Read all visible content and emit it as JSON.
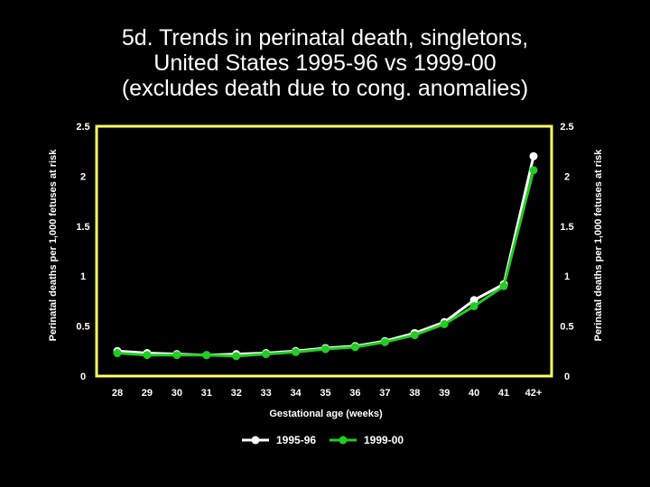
{
  "title_lines": [
    "5d. Trends in perinatal death, singletons,",
    "United States 1995-96 vs 1999-00",
    "(excludes death due to cong. anomalies)"
  ],
  "colors": {
    "background": "#000000",
    "frame": "#ffff66",
    "series1": "#ffffff",
    "series2": "#22cc22",
    "text": "#ffffff"
  },
  "chart_data": {
    "type": "line",
    "title": "5d. Trends in perinatal death, singletons, United States 1995-96 vs 1999-00 (excludes death due to cong. anomalies)",
    "xlabel": "Gestational age (weeks)",
    "ylabel": "Perinatal deaths per 1,000 fetuses at risk",
    "ylabel_right": "Perinatal deaths per 1,000 fetuses at risk",
    "categories": [
      "28",
      "29",
      "30",
      "31",
      "32",
      "33",
      "34",
      "35",
      "36",
      "37",
      "38",
      "39",
      "40",
      "41",
      "42+"
    ],
    "yticks": [
      "0",
      "0.5",
      "1",
      "1.5",
      "2",
      "2.5"
    ],
    "ylim": [
      0,
      2.5
    ],
    "grid": false,
    "legend_position": "bottom",
    "series": [
      {
        "name": "1995-96",
        "color": "#ffffff",
        "values": [
          0.25,
          0.23,
          0.22,
          0.21,
          0.22,
          0.23,
          0.25,
          0.28,
          0.3,
          0.35,
          0.43,
          0.54,
          0.76,
          0.92,
          2.2
        ]
      },
      {
        "name": "1999-00",
        "color": "#22cc22",
        "values": [
          0.23,
          0.21,
          0.21,
          0.21,
          0.2,
          0.22,
          0.24,
          0.27,
          0.29,
          0.34,
          0.41,
          0.52,
          0.7,
          0.9,
          2.06
        ]
      }
    ]
  }
}
